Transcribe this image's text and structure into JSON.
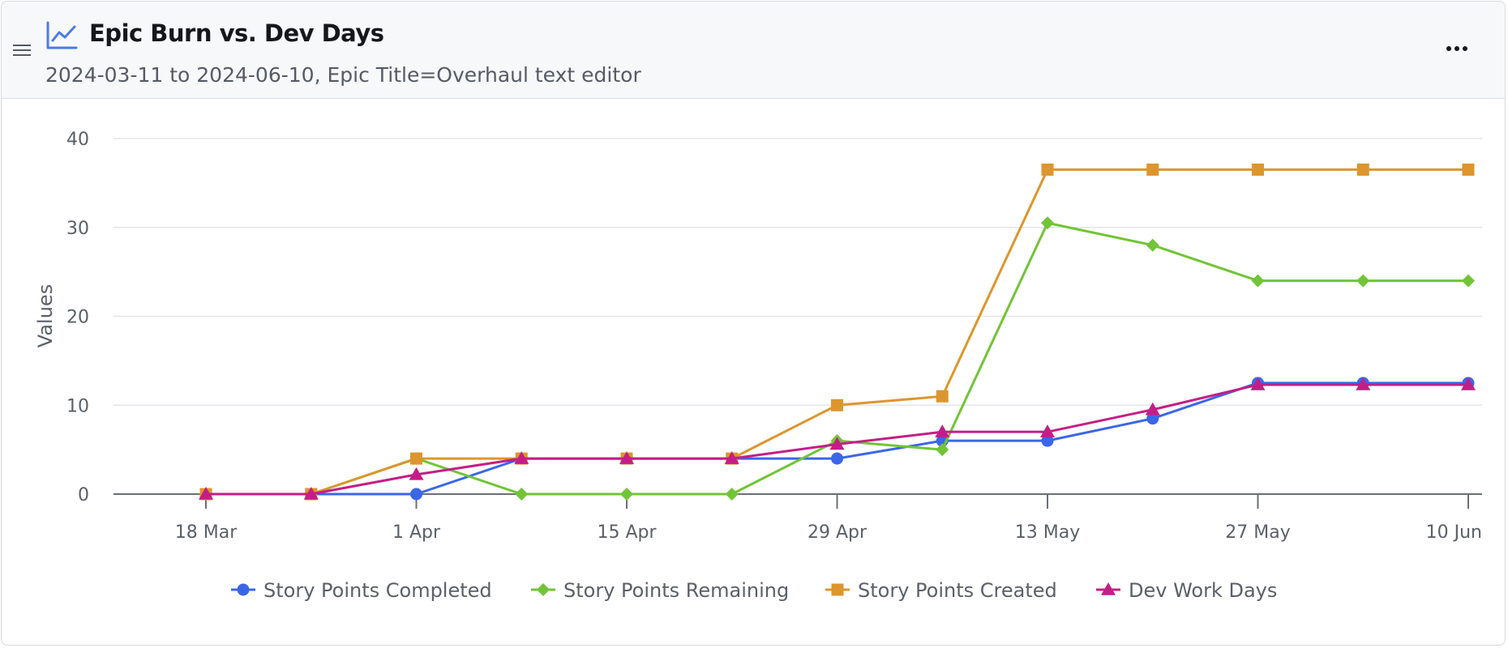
{
  "header": {
    "title": "Epic Burn vs. Dev Days",
    "subtitle": "2024-03-11 to 2024-06-10, Epic Title=Overhaul text editor",
    "icons": {
      "menu": "hamburger-icon",
      "chart": "line-chart-icon",
      "more": "more-horizontal-icon"
    }
  },
  "colors": {
    "completed": "#3b66e8",
    "remaining": "#72c437",
    "created": "#dc962d",
    "dev_days": "#c41e86",
    "accent": "#4a7be8"
  },
  "chart_data": {
    "type": "line",
    "ylabel": "Values",
    "ylim": [
      0,
      40
    ],
    "yticks": [
      0,
      10,
      20,
      30,
      40
    ],
    "x": [
      "2024-03-18",
      "2024-03-25",
      "2024-04-01",
      "2024-04-08",
      "2024-04-15",
      "2024-04-22",
      "2024-04-29",
      "2024-05-06",
      "2024-05-13",
      "2024-05-20",
      "2024-05-27",
      "2024-06-03",
      "2024-06-10"
    ],
    "x_tick_labels": [
      "18 Mar",
      "1 Apr",
      "15 Apr",
      "29 Apr",
      "13 May",
      "27 May",
      "10 Jun"
    ],
    "legend_position": "bottom",
    "grid": true,
    "series": [
      {
        "name": "Story Points Completed",
        "color": "#3b66e8",
        "marker": "circle",
        "values": [
          0,
          0,
          0,
          4,
          4,
          4,
          4,
          6,
          6,
          8.5,
          12.5,
          12.5,
          12.5
        ]
      },
      {
        "name": "Story Points Remaining",
        "color": "#72c437",
        "marker": "diamond",
        "values": [
          0,
          0,
          4,
          0,
          0,
          0,
          6,
          5,
          30.5,
          28,
          24,
          24,
          24
        ]
      },
      {
        "name": "Story Points Created",
        "color": "#dc962d",
        "marker": "square",
        "values": [
          0,
          0,
          4,
          4,
          4,
          4,
          10,
          11,
          36.5,
          36.5,
          36.5,
          36.5,
          36.5
        ]
      },
      {
        "name": "Dev Work Days",
        "color": "#c41e86",
        "marker": "triangle",
        "values": [
          0,
          0,
          2.2,
          4,
          4,
          4,
          5.6,
          7,
          7,
          9.5,
          12.3,
          12.3,
          12.3
        ]
      }
    ]
  }
}
